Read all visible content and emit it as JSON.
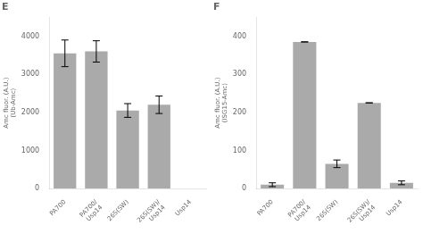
{
  "chart_data": [
    {
      "type": "bar",
      "title": "E",
      "categories": [
        "PA700",
        "PA700/\nUsp14",
        "26S(SW)",
        "26S(SW)/\nUsp14",
        "Usp14"
      ],
      "values": [
        3550,
        3600,
        2050,
        2200,
        0
      ],
      "errors": [
        350,
        280,
        180,
        230,
        null
      ],
      "ylabel": "Amc fluor. (A.U.)\n(Ub-Amc)",
      "ylim": [
        0,
        4500
      ],
      "yticks": [
        0,
        1000,
        2000,
        3000,
        4000
      ],
      "color": "#aaaaaa",
      "grid": false
    },
    {
      "type": "bar",
      "title": "F",
      "categories": [
        "PA700",
        "PA700/\nUsp14",
        "26S(SW)",
        "26S(SW)/\nUsp14",
        "Usp14"
      ],
      "values": [
        10,
        385,
        65,
        225,
        15
      ],
      "errors": [
        5,
        0,
        10,
        0,
        5
      ],
      "ylabel": "Amc fluor. (A.U.)\n(ISG15-Amc)",
      "ylim": [
        0,
        450
      ],
      "yticks": [
        0,
        100,
        200,
        300,
        400
      ],
      "color": "#aaaaaa",
      "grid": false
    }
  ]
}
